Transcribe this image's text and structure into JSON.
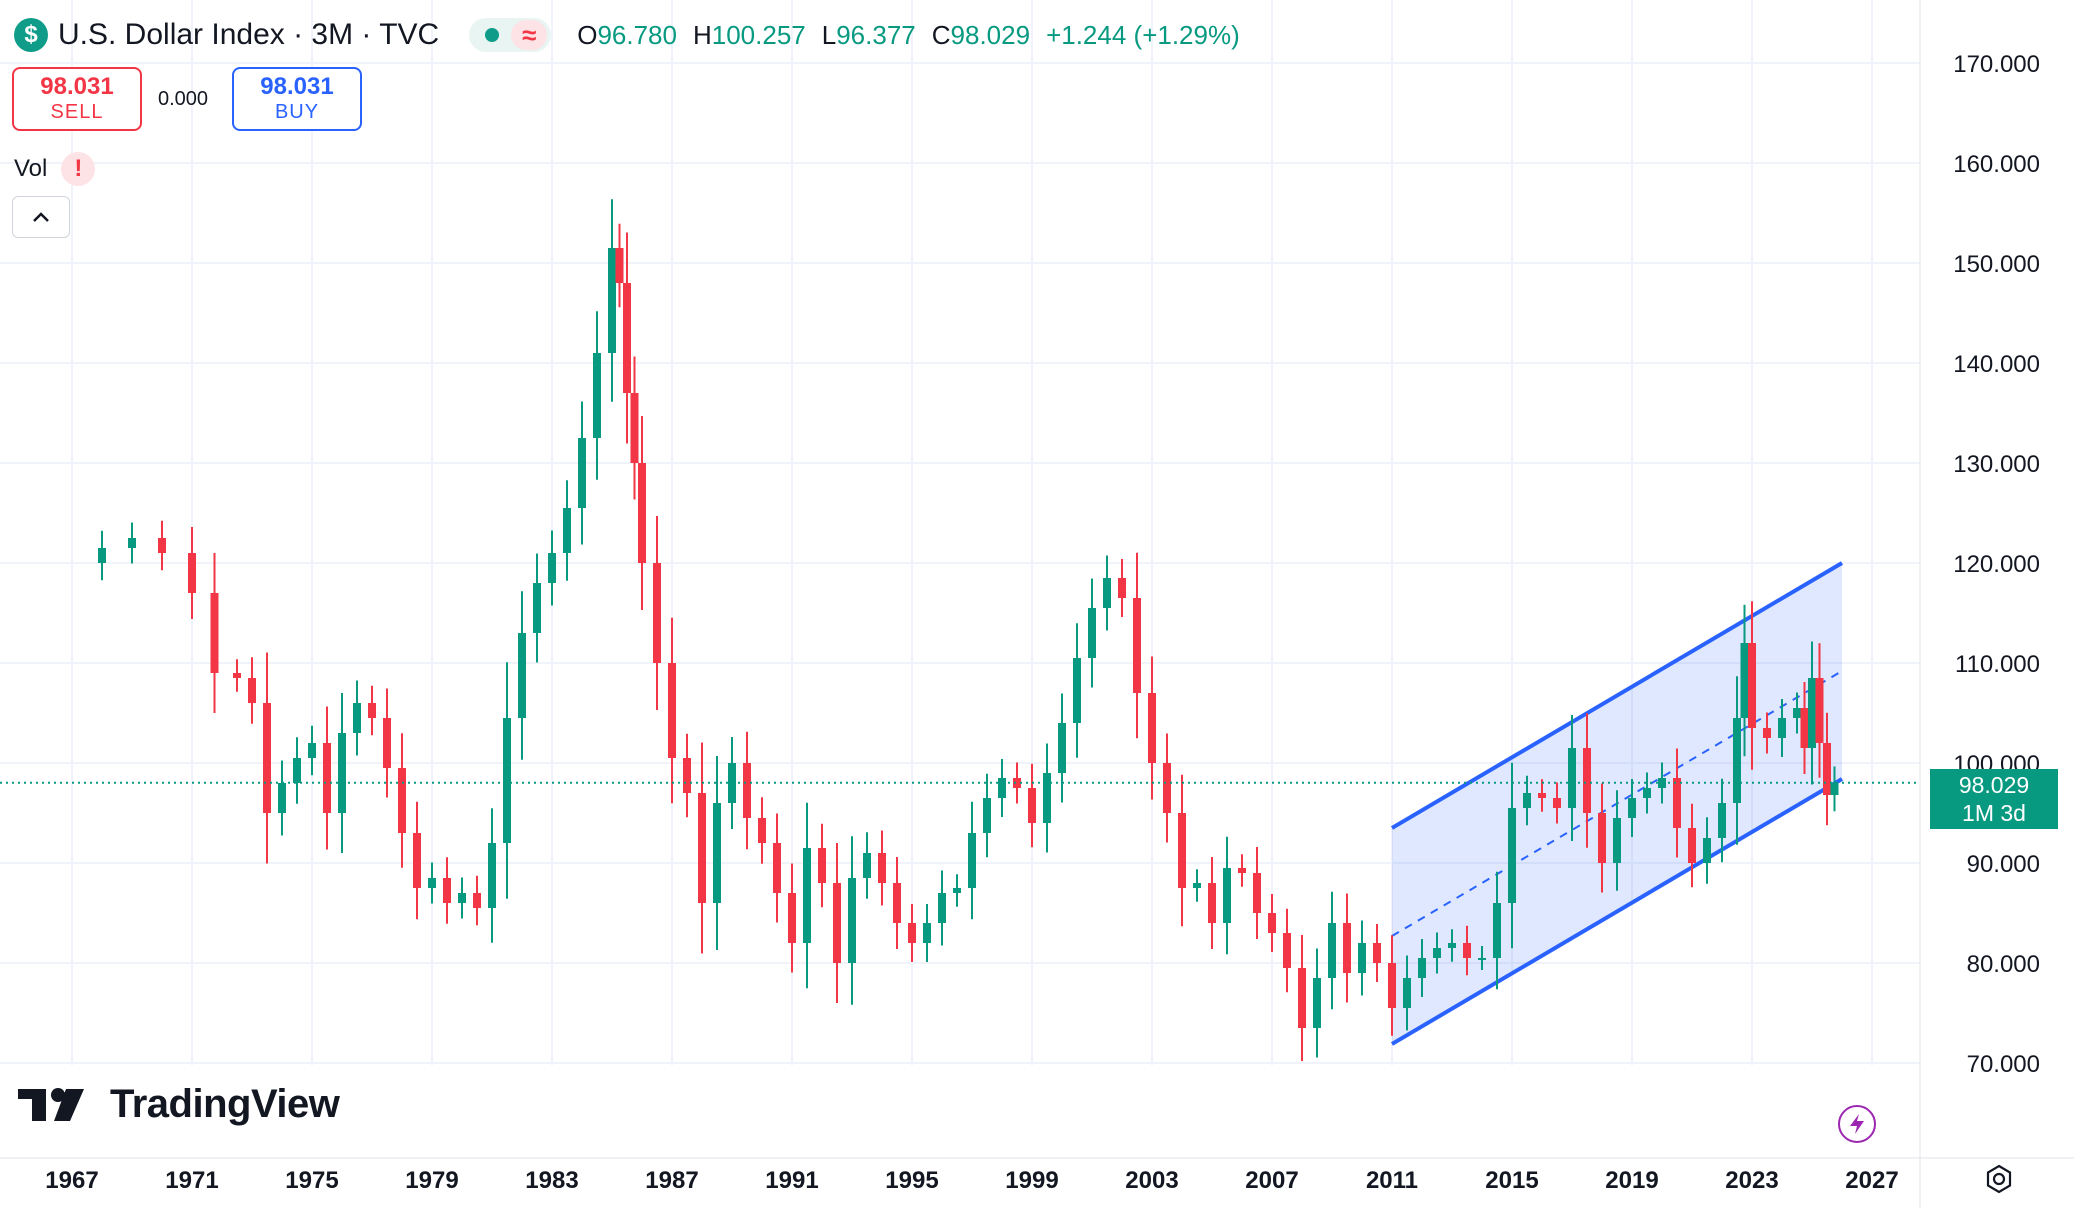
{
  "header": {
    "symbol_icon": "$",
    "title": "U.S. Dollar Index · 3M · TVC",
    "ohlc": [
      {
        "key": "O",
        "value": "96.780"
      },
      {
        "key": "H",
        "value": "100.257"
      },
      {
        "key": "L",
        "value": "96.377"
      },
      {
        "key": "C",
        "value": "98.029"
      }
    ],
    "change": "+1.244 (+1.29%)"
  },
  "trade": {
    "sell_price": "98.031",
    "sell_label": "SELL",
    "spread": "0.000",
    "buy_price": "98.031",
    "buy_label": "BUY"
  },
  "indicators": {
    "vol_label": "Vol",
    "vol_warning": "!"
  },
  "brand": {
    "name": "TradingView"
  },
  "last_price": {
    "price": "98.029",
    "countdown": "1M 3d"
  },
  "colors": {
    "up": "#089981",
    "down": "#f23645",
    "channel": "#2962ff",
    "channel_fill": "#2962ff22"
  },
  "icons": [
    "dollar-icon",
    "market-status-icon",
    "chevron-up-icon",
    "warning-icon",
    "lightning-icon",
    "settings-icon"
  ],
  "chart_data": {
    "type": "candlestick",
    "y_ticks": [
      "170.000",
      "160.000",
      "150.000",
      "140.000",
      "130.000",
      "120.000",
      "110.000",
      "100.000",
      "90.000",
      "80.000",
      "70.000"
    ],
    "x_ticks": [
      "1967",
      "1971",
      "1975",
      "1979",
      "1983",
      "1987",
      "1991",
      "1995",
      "1999",
      "2003",
      "2007",
      "2011",
      "2015",
      "2019",
      "2023",
      "2027"
    ],
    "ylim": [
      62,
      175
    ],
    "xlim": [
      1964.6,
      2028.6
    ],
    "grid": true,
    "closes": [
      [
        1967.0,
        120.0
      ],
      [
        1968.0,
        121.5
      ],
      [
        1969.0,
        122.5
      ],
      [
        1970.0,
        121.0
      ],
      [
        1971.0,
        117.0
      ],
      [
        1971.75,
        109.0
      ],
      [
        1972.5,
        108.5
      ],
      [
        1973.0,
        106.0
      ],
      [
        1973.5,
        95.0
      ],
      [
        1974.0,
        98.0
      ],
      [
        1974.5,
        100.5
      ],
      [
        1975.0,
        102.0
      ],
      [
        1975.5,
        95.0
      ],
      [
        1976.0,
        103.0
      ],
      [
        1976.5,
        106.0
      ],
      [
        1977.0,
        104.5
      ],
      [
        1977.5,
        99.5
      ],
      [
        1978.0,
        93.0
      ],
      [
        1978.5,
        87.5
      ],
      [
        1979.0,
        88.5
      ],
      [
        1979.5,
        86.0
      ],
      [
        1980.0,
        87.0
      ],
      [
        1980.5,
        85.5
      ],
      [
        1981.0,
        92.0
      ],
      [
        1981.5,
        104.5
      ],
      [
        1982.0,
        113.0
      ],
      [
        1982.5,
        118.0
      ],
      [
        1983.0,
        121.0
      ],
      [
        1983.5,
        125.5
      ],
      [
        1984.0,
        132.5
      ],
      [
        1984.5,
        141.0
      ],
      [
        1985.0,
        151.5
      ],
      [
        1985.25,
        148.0
      ],
      [
        1985.5,
        137.0
      ],
      [
        1985.75,
        130.0
      ],
      [
        1986.0,
        120.0
      ],
      [
        1986.5,
        110.0
      ],
      [
        1987.0,
        100.5
      ],
      [
        1987.5,
        97.0
      ],
      [
        1988.0,
        86.0
      ],
      [
        1988.5,
        96.0
      ],
      [
        1989.0,
        100.0
      ],
      [
        1989.5,
        94.5
      ],
      [
        1990.0,
        92.0
      ],
      [
        1990.5,
        87.0
      ],
      [
        1991.0,
        82.0
      ],
      [
        1991.5,
        91.5
      ],
      [
        1992.0,
        88.0
      ],
      [
        1992.5,
        80.0
      ],
      [
        1993.0,
        88.5
      ],
      [
        1993.5,
        91.0
      ],
      [
        1994.0,
        88.0
      ],
      [
        1994.5,
        84.0
      ],
      [
        1995.0,
        82.0
      ],
      [
        1995.5,
        84.0
      ],
      [
        1996.0,
        87.0
      ],
      [
        1996.5,
        87.5
      ],
      [
        1997.0,
        93.0
      ],
      [
        1997.5,
        96.5
      ],
      [
        1998.0,
        98.5
      ],
      [
        1998.5,
        97.5
      ],
      [
        1999.0,
        94.0
      ],
      [
        1999.5,
        99.0
      ],
      [
        2000.0,
        104.0
      ],
      [
        2000.5,
        110.5
      ],
      [
        2001.0,
        115.5
      ],
      [
        2001.5,
        118.5
      ],
      [
        2002.0,
        116.5
      ],
      [
        2002.5,
        107.0
      ],
      [
        2003.0,
        100.0
      ],
      [
        2003.5,
        95.0
      ],
      [
        2004.0,
        87.5
      ],
      [
        2004.5,
        88.0
      ],
      [
        2005.0,
        84.0
      ],
      [
        2005.5,
        89.5
      ],
      [
        2006.0,
        89.0
      ],
      [
        2006.5,
        85.0
      ],
      [
        2007.0,
        83.0
      ],
      [
        2007.5,
        79.5
      ],
      [
        2008.0,
        73.5
      ],
      [
        2008.5,
        78.5
      ],
      [
        2009.0,
        84.0
      ],
      [
        2009.5,
        79.0
      ],
      [
        2010.0,
        82.0
      ],
      [
        2010.5,
        80.0
      ],
      [
        2011.0,
        75.5
      ],
      [
        2011.5,
        78.5
      ],
      [
        2012.0,
        80.5
      ],
      [
        2012.5,
        81.5
      ],
      [
        2013.0,
        82.0
      ],
      [
        2013.5,
        80.5
      ],
      [
        2014.0,
        80.5
      ],
      [
        2014.5,
        86.0
      ],
      [
        2015.0,
        95.5
      ],
      [
        2015.5,
        97.0
      ],
      [
        2016.0,
        96.5
      ],
      [
        2016.5,
        95.5
      ],
      [
        2017.0,
        101.5
      ],
      [
        2017.5,
        95.0
      ],
      [
        2018.0,
        90.0
      ],
      [
        2018.5,
        94.5
      ],
      [
        2019.0,
        96.5
      ],
      [
        2019.5,
        97.5
      ],
      [
        2020.0,
        98.5
      ],
      [
        2020.5,
        93.5
      ],
      [
        2021.0,
        90.0
      ],
      [
        2021.5,
        92.5
      ],
      [
        2022.0,
        96.0
      ],
      [
        2022.5,
        104.5
      ],
      [
        2022.75,
        112.0
      ],
      [
        2023.0,
        103.5
      ],
      [
        2023.5,
        102.5
      ],
      [
        2024.0,
        104.5
      ],
      [
        2024.5,
        105.5
      ],
      [
        2024.75,
        101.5
      ],
      [
        2025.0,
        108.5
      ],
      [
        2025.25,
        102.0
      ],
      [
        2025.5,
        96.8
      ],
      [
        2025.75,
        98.029
      ]
    ],
    "channel": {
      "upper": [
        [
          2011.0,
          93.5
        ],
        [
          2026.0,
          120.0
        ]
      ],
      "middle": [
        [
          2011.0,
          82.7
        ],
        [
          2026.0,
          109.2
        ]
      ],
      "lower": [
        [
          2011.0,
          71.9
        ],
        [
          2026.0,
          98.4
        ]
      ]
    },
    "last_price_line": 98.029
  }
}
